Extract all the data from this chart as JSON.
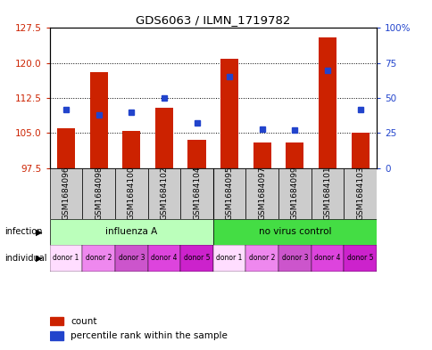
{
  "title": "GDS6063 / ILMN_1719782",
  "samples": [
    "GSM1684096",
    "GSM1684098",
    "GSM1684100",
    "GSM1684102",
    "GSM1684104",
    "GSM1684095",
    "GSM1684097",
    "GSM1684099",
    "GSM1684101",
    "GSM1684103"
  ],
  "count_values": [
    106.0,
    118.0,
    105.5,
    110.5,
    103.5,
    121.0,
    103.0,
    103.0,
    125.5,
    105.0
  ],
  "percentile_values": [
    42,
    38,
    40,
    50,
    32,
    65,
    28,
    27,
    70,
    42
  ],
  "ylim_left": [
    97.5,
    127.5
  ],
  "ylim_right": [
    0,
    100
  ],
  "yticks_left": [
    97.5,
    105.0,
    112.5,
    120.0,
    127.5
  ],
  "yticks_right": [
    0,
    25,
    50,
    75,
    100
  ],
  "bar_color": "#cc2200",
  "dot_color": "#2244cc",
  "bar_bottom": 97.5,
  "infection_group1_label": "influenza A",
  "infection_group2_label": "no virus control",
  "infection_color1": "#bbffbb",
  "infection_color2": "#44dd44",
  "individual_colors": [
    "#ffddff",
    "#ee88ee",
    "#cc55cc",
    "#dd44dd",
    "#cc22cc"
  ],
  "individual_labels": [
    "donor 1",
    "donor 2",
    "donor 3",
    "donor 4",
    "donor 5"
  ],
  "infection_label": "infection",
  "individual_label": "individual",
  "legend_count": "count",
  "legend_percentile": "percentile rank within the sample",
  "bg_color": "#ffffff",
  "tick_label_color_left": "#cc2200",
  "tick_label_color_right": "#2244cc",
  "gray_box_color": "#cccccc"
}
